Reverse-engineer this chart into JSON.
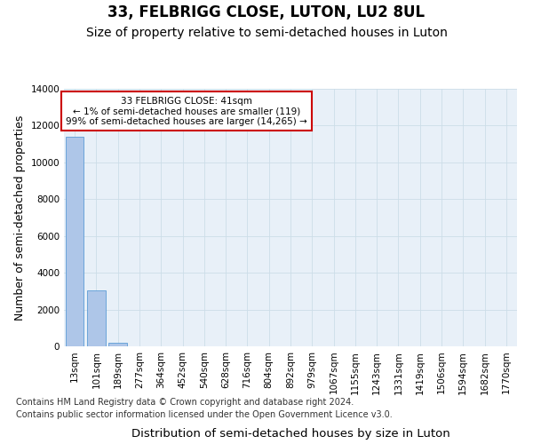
{
  "title": "33, FELBRIGG CLOSE, LUTON, LU2 8UL",
  "subtitle": "Size of property relative to semi-detached houses in Luton",
  "xlabel": "Distribution of semi-detached houses by size in Luton",
  "ylabel": "Number of semi-detached properties",
  "annotation_line1": "33 FELBRIGG CLOSE: 41sqm",
  "annotation_line2": "← 1% of semi-detached houses are smaller (119)",
  "annotation_line3": "99% of semi-detached houses are larger (14,265) →",
  "footer_line1": "Contains HM Land Registry data © Crown copyright and database right 2024.",
  "footer_line2": "Contains public sector information licensed under the Open Government Licence v3.0.",
  "bar_labels": [
    "13sqm",
    "101sqm",
    "189sqm",
    "277sqm",
    "364sqm",
    "452sqm",
    "540sqm",
    "628sqm",
    "716sqm",
    "804sqm",
    "892sqm",
    "979sqm",
    "1067sqm",
    "1155sqm",
    "1243sqm",
    "1331sqm",
    "1419sqm",
    "1506sqm",
    "1594sqm",
    "1682sqm",
    "1770sqm"
  ],
  "bar_values": [
    11400,
    3050,
    175,
    0,
    0,
    0,
    0,
    0,
    0,
    0,
    0,
    0,
    0,
    0,
    0,
    0,
    0,
    0,
    0,
    0,
    0
  ],
  "bar_color": "#aec6e8",
  "bar_edge_color": "#5b9bd5",
  "ylim": [
    0,
    14000
  ],
  "yticks": [
    0,
    2000,
    4000,
    6000,
    8000,
    10000,
    12000,
    14000
  ],
  "grid_color": "#ccdde8",
  "bg_color": "#e8f0f8",
  "annotation_box_color": "#cc0000",
  "title_fontsize": 12,
  "subtitle_fontsize": 10,
  "axis_label_fontsize": 9,
  "tick_fontsize": 7.5,
  "footer_fontsize": 7
}
